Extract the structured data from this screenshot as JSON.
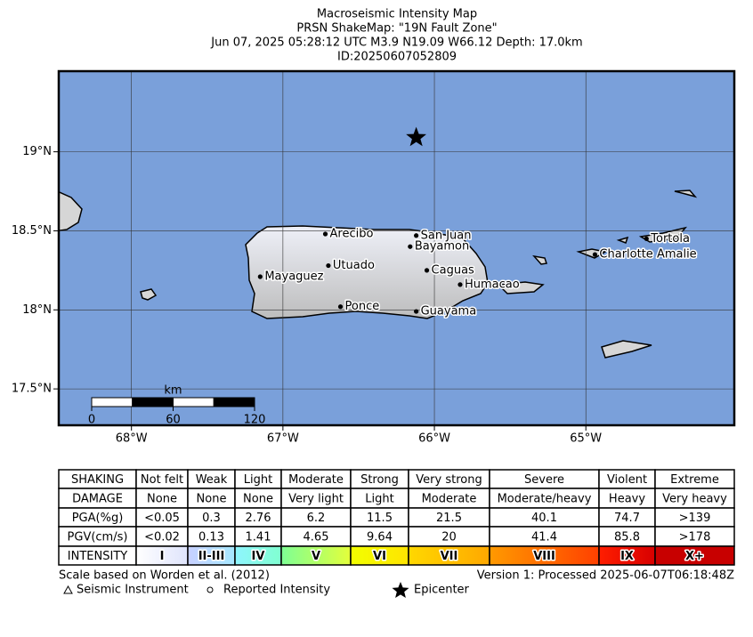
{
  "header": {
    "lines": [
      "Macroseismic Intensity Map",
      "PRSN ShakeMap: \"19N Fault Zone\"",
      "Jun 07, 2025 05:28:12 UTC M3.9 N19.09 W66.12 Depth: 17.0km",
      "ID:20250607052809"
    ]
  },
  "map": {
    "type": "map",
    "ocean_color": "#7aa0da",
    "land_color": "#d8d8d8",
    "xlim": [
      -68.48,
      -64.02
    ],
    "ylim": [
      17.27,
      19.51
    ],
    "xticks": [
      {
        "value": -68,
        "label": "68°W"
      },
      {
        "value": -67,
        "label": "67°W"
      },
      {
        "value": -66,
        "label": "66°W"
      },
      {
        "value": -65,
        "label": "65°W"
      }
    ],
    "yticks": [
      {
        "value": 19,
        "label": "19°N"
      },
      {
        "value": 18.5,
        "label": "18.5°N"
      },
      {
        "value": 18,
        "label": "18°N"
      },
      {
        "value": 17.5,
        "label": "17.5°N"
      }
    ],
    "grid": true,
    "cities": [
      {
        "name": "Arecibo",
        "lon": -66.72,
        "lat": 18.48
      },
      {
        "name": "San Juan",
        "lon": -66.12,
        "lat": 18.47
      },
      {
        "name": "Bayamon",
        "lon": -66.16,
        "lat": 18.4
      },
      {
        "name": "Utuado",
        "lon": -66.7,
        "lat": 18.28
      },
      {
        "name": "Caguas",
        "lon": -66.05,
        "lat": 18.25
      },
      {
        "name": "Mayaguez",
        "lon": -67.15,
        "lat": 18.21
      },
      {
        "name": "Humacao",
        "lon": -65.83,
        "lat": 18.16
      },
      {
        "name": "Ponce",
        "lon": -66.62,
        "lat": 18.02
      },
      {
        "name": "Guayama",
        "lon": -66.12,
        "lat": 17.99
      },
      {
        "name": "Tortola",
        "lon": -64.6,
        "lat": 18.45
      },
      {
        "name": "Charlotte Amalie",
        "lon": -64.94,
        "lat": 18.35
      }
    ],
    "epicenter": {
      "lon": -66.12,
      "lat": 19.09
    },
    "scale_bar": {
      "unit": "km",
      "ticks": [
        0,
        60,
        120
      ]
    }
  },
  "table": {
    "rows": [
      [
        "SHAKING",
        "Not felt",
        "Weak",
        "Light",
        "Moderate",
        "Strong",
        "Very strong",
        "Severe",
        "Violent",
        "Extreme"
      ],
      [
        "DAMAGE",
        "None",
        "None",
        "None",
        "Very light",
        "Light",
        "Moderate",
        "Moderate/heavy",
        "Heavy",
        "Very heavy"
      ],
      [
        "PGA(%g)",
        "<0.05",
        "0.3",
        "2.76",
        "6.2",
        "11.5",
        "21.5",
        "40.1",
        "74.7",
        ">139"
      ],
      [
        "PGV(cm/s)",
        "<0.02",
        "0.13",
        "1.41",
        "4.65",
        "9.64",
        "20",
        "41.4",
        "85.8",
        ">178"
      ],
      [
        "INTENSITY",
        "I",
        "II-III",
        "IV",
        "V",
        "VI",
        "VII",
        "VIII",
        "IX",
        "X+"
      ]
    ],
    "intensity_colors": [
      [
        "#ffffff",
        "#dfe4fc"
      ],
      [
        "#c8d0ff",
        "#a6e8ff"
      ],
      [
        "#8ff5ff",
        "#80ffd0"
      ],
      [
        "#7dff95",
        "#e4ff3a"
      ],
      [
        "#f2ff00",
        "#ffe400"
      ],
      [
        "#ffd800",
        "#ffa800"
      ],
      [
        "#ff9a00",
        "#ff4000"
      ],
      [
        "#ff1e00",
        "#d80000"
      ],
      [
        "#c80000",
        "#c80000"
      ]
    ]
  },
  "footer": {
    "left": "Scale based on Worden et al. (2012)",
    "right": "Version 1: Processed 2025-06-07T06:18:48Z",
    "legend": [
      "Seismic Instrument",
      "Reported Intensity",
      "Epicenter"
    ]
  }
}
